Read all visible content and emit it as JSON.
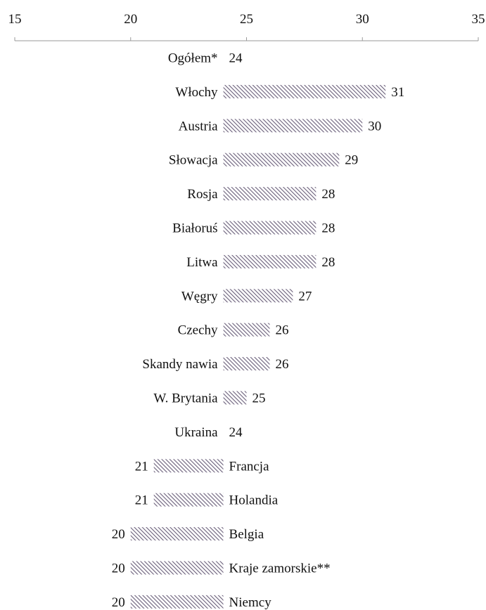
{
  "chart_data": {
    "type": "bar",
    "orientation": "horizontal",
    "baseline": 24,
    "xlim": [
      15,
      35
    ],
    "xticks": [
      "15",
      "20",
      "25",
      "30",
      "35"
    ],
    "axis_position": "top",
    "grid": false,
    "legend": "none",
    "categories": [
      "Ogółem*",
      "Włochy",
      "Austria",
      "Słowacja",
      "Rosja",
      "Białoruś",
      "Litwa",
      "Węgry",
      "Czechy",
      "Skandy nawia",
      "W. Brytania",
      "Ukraina",
      "Francja",
      "Holandia",
      "Belgia",
      "Kraje zamorskie**",
      "Niemcy"
    ],
    "values": [
      24,
      31,
      30,
      29,
      28,
      28,
      28,
      27,
      26,
      26,
      25,
      24,
      21,
      21,
      20,
      20,
      20
    ],
    "value_labels": [
      "24",
      "31",
      "30",
      "29",
      "28",
      "28",
      "28",
      "27",
      "26",
      "26",
      "25",
      "24",
      "21",
      "21",
      "20",
      "20",
      "20"
    ],
    "bar_fill": "hatched",
    "colors": {
      "bar_hatch": "#6a5f7a",
      "bar_background": "#ffffff",
      "axis": "#9a9a9a",
      "text": "#111111"
    }
  }
}
